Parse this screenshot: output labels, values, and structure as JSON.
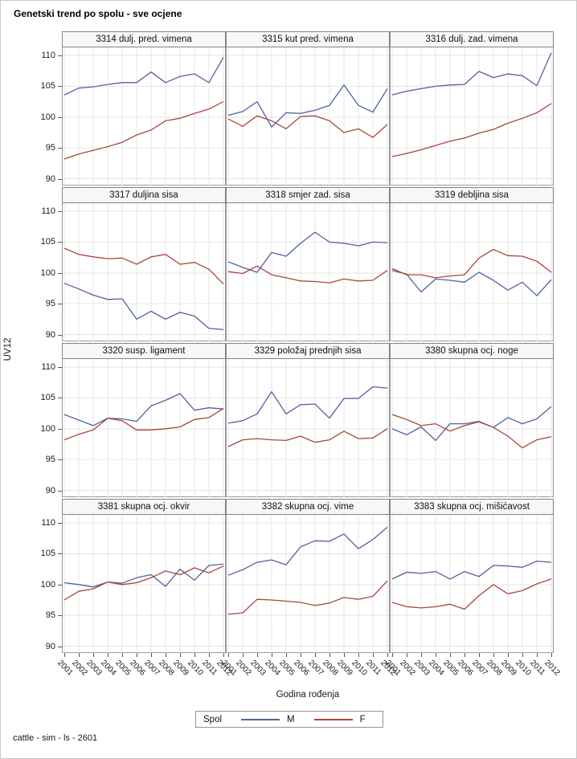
{
  "title": "Genetski trend po spolu - sve ocjene",
  "y_axis_label": "UV12",
  "x_axis_label": "Godina rođenja",
  "footer": "cattle - sim - ls - 2601",
  "legend": {
    "title": "Spol",
    "items": [
      {
        "label": "M",
        "color": "#4f639e"
      },
      {
        "label": "F",
        "color": "#a9473d"
      }
    ]
  },
  "colors": {
    "male_line": "#4f639e",
    "female_line": "#a9473d",
    "gridline": "#e4e4e4",
    "panel_border": "#9a9a9a",
    "header_bg": "#f7f7f7"
  },
  "chart_data": {
    "type": "line",
    "layout": "lattice 4 rows x 3 cols, shared axes",
    "x": [
      2001,
      2002,
      2003,
      2004,
      2005,
      2006,
      2007,
      2008,
      2009,
      2010,
      2011,
      2012
    ],
    "x_tick_labels": [
      "2001",
      "2002",
      "2003",
      "2004",
      "2005",
      "2006",
      "2007",
      "2008",
      "2009",
      "2010",
      "2011",
      "2012"
    ],
    "yticks": [
      90,
      95,
      100,
      105,
      110
    ],
    "ylim": [
      88.9,
      111.3
    ],
    "legend_position": "bottom",
    "grid": true,
    "panels": [
      {
        "title": "3314 dulj. pred. vimena",
        "series": [
          {
            "name": "M",
            "values": [
              103.6,
              104.7,
              104.9,
              105.3,
              105.6,
              105.6,
              107.3,
              105.6,
              106.6,
              107.0,
              105.6,
              109.7
            ]
          },
          {
            "name": "F",
            "values": [
              93.2,
              94.0,
              94.6,
              95.2,
              95.9,
              97.1,
              97.9,
              99.4,
              99.8,
              100.6,
              101.3,
              102.5
            ]
          }
        ]
      },
      {
        "title": "3315 kut pred. vimena",
        "series": [
          {
            "name": "M",
            "values": [
              100.3,
              100.9,
              102.5,
              98.4,
              100.7,
              100.6,
              101.1,
              101.9,
              105.2,
              101.9,
              100.8,
              104.6
            ]
          },
          {
            "name": "F",
            "values": [
              99.7,
              98.5,
              100.2,
              99.4,
              98.1,
              100.1,
              100.2,
              99.4,
              97.5,
              98.1,
              96.7,
              98.8
            ]
          }
        ]
      },
      {
        "title": "3316 dulj. zad. vimena",
        "series": [
          {
            "name": "M",
            "values": [
              103.6,
              104.2,
              104.6,
              105.0,
              105.2,
              105.3,
              107.4,
              106.4,
              107.0,
              106.7,
              105.1,
              110.4
            ]
          },
          {
            "name": "F",
            "values": [
              93.6,
              94.1,
              94.7,
              95.4,
              96.1,
              96.6,
              97.4,
              98.0,
              99.0,
              99.8,
              100.7,
              102.2
            ]
          }
        ]
      },
      {
        "title": "3317 duljina sisa",
        "series": [
          {
            "name": "M",
            "values": [
              98.3,
              97.4,
              96.4,
              95.7,
              95.8,
              92.5,
              93.8,
              92.5,
              93.6,
              93.0,
              91.0,
              90.8
            ]
          },
          {
            "name": "F",
            "values": [
              104.0,
              103.0,
              102.6,
              102.3,
              102.4,
              101.4,
              102.6,
              103.0,
              101.4,
              101.7,
              100.6,
              98.2
            ]
          }
        ]
      },
      {
        "title": "3318 smjer zad. sisa",
        "series": [
          {
            "name": "M",
            "values": [
              101.8,
              100.9,
              100.1,
              103.3,
              102.7,
              104.8,
              106.6,
              105.0,
              104.8,
              104.4,
              105.0,
              104.9
            ]
          },
          {
            "name": "F",
            "values": [
              100.2,
              99.9,
              101.1,
              99.7,
              99.2,
              98.7,
              98.6,
              98.4,
              99.0,
              98.7,
              98.8,
              100.4
            ]
          }
        ]
      },
      {
        "title": "3319 debljina sisa",
        "series": [
          {
            "name": "M",
            "values": [
              100.4,
              99.8,
              96.9,
              99.0,
              98.8,
              98.5,
              100.1,
              98.8,
              97.2,
              98.5,
              96.3,
              98.9
            ]
          },
          {
            "name": "F",
            "values": [
              100.7,
              99.7,
              99.7,
              99.2,
              99.5,
              99.7,
              102.4,
              103.8,
              102.8,
              102.7,
              101.9,
              100.1
            ]
          }
        ]
      },
      {
        "title": "3320 susp. ligament",
        "series": [
          {
            "name": "M",
            "values": [
              102.3,
              101.4,
              100.5,
              101.7,
              101.6,
              101.2,
              103.7,
              104.6,
              105.7,
              103.0,
              103.4,
              103.2
            ]
          },
          {
            "name": "F",
            "values": [
              98.2,
              99.1,
              99.8,
              101.7,
              101.3,
              99.8,
              99.8,
              100.0,
              100.3,
              101.5,
              101.8,
              103.3
            ]
          }
        ]
      },
      {
        "title": "3329 položaj prednjih sisa",
        "series": [
          {
            "name": "M",
            "values": [
              100.9,
              101.3,
              102.4,
              106.0,
              102.4,
              103.9,
              104.0,
              101.7,
              104.9,
              104.9,
              106.8,
              106.6
            ]
          },
          {
            "name": "F",
            "values": [
              97.1,
              98.2,
              98.4,
              98.2,
              98.1,
              98.8,
              97.8,
              98.2,
              99.6,
              98.4,
              98.5,
              100.0
            ]
          }
        ]
      },
      {
        "title": "3380 skupna ocj. noge",
        "series": [
          {
            "name": "M",
            "values": [
              100.0,
              99.0,
              100.3,
              98.1,
              100.8,
              100.8,
              101.2,
              100.2,
              101.8,
              100.8,
              101.6,
              103.6
            ]
          },
          {
            "name": "F",
            "values": [
              102.3,
              101.5,
              100.5,
              100.8,
              99.6,
              100.5,
              101.1,
              100.2,
              98.8,
              96.9,
              98.2,
              98.7
            ]
          }
        ]
      },
      {
        "title": "3381 skupna ocj. okvir",
        "series": [
          {
            "name": "M",
            "values": [
              100.3,
              100.0,
              99.6,
              100.4,
              100.2,
              101.1,
              101.6,
              99.7,
              102.5,
              100.7,
              103.1,
              103.3
            ]
          },
          {
            "name": "F",
            "values": [
              97.5,
              98.9,
              99.3,
              100.4,
              100.0,
              100.3,
              101.1,
              102.2,
              101.6,
              102.7,
              101.9,
              103.0
            ]
          }
        ]
      },
      {
        "title": "3382 skupna ocj. vime",
        "series": [
          {
            "name": "M",
            "values": [
              101.5,
              102.4,
              103.6,
              104.0,
              103.2,
              106.1,
              107.1,
              107.0,
              108.2,
              105.8,
              107.3,
              109.3
            ]
          },
          {
            "name": "F",
            "values": [
              95.2,
              95.4,
              97.6,
              97.5,
              97.3,
              97.1,
              96.6,
              97.0,
              97.9,
              97.6,
              98.1,
              100.6
            ]
          }
        ]
      },
      {
        "title": "3383 skupna ocj. mišićavost",
        "series": [
          {
            "name": "M",
            "values": [
              100.9,
              102.0,
              101.8,
              102.1,
              100.9,
              102.1,
              101.3,
              103.1,
              103.0,
              102.8,
              103.8,
              103.6
            ]
          },
          {
            "name": "F",
            "values": [
              97.1,
              96.4,
              96.2,
              96.4,
              96.8,
              96.0,
              98.2,
              100.0,
              98.5,
              99.0,
              100.1,
              100.9
            ]
          }
        ]
      }
    ]
  }
}
